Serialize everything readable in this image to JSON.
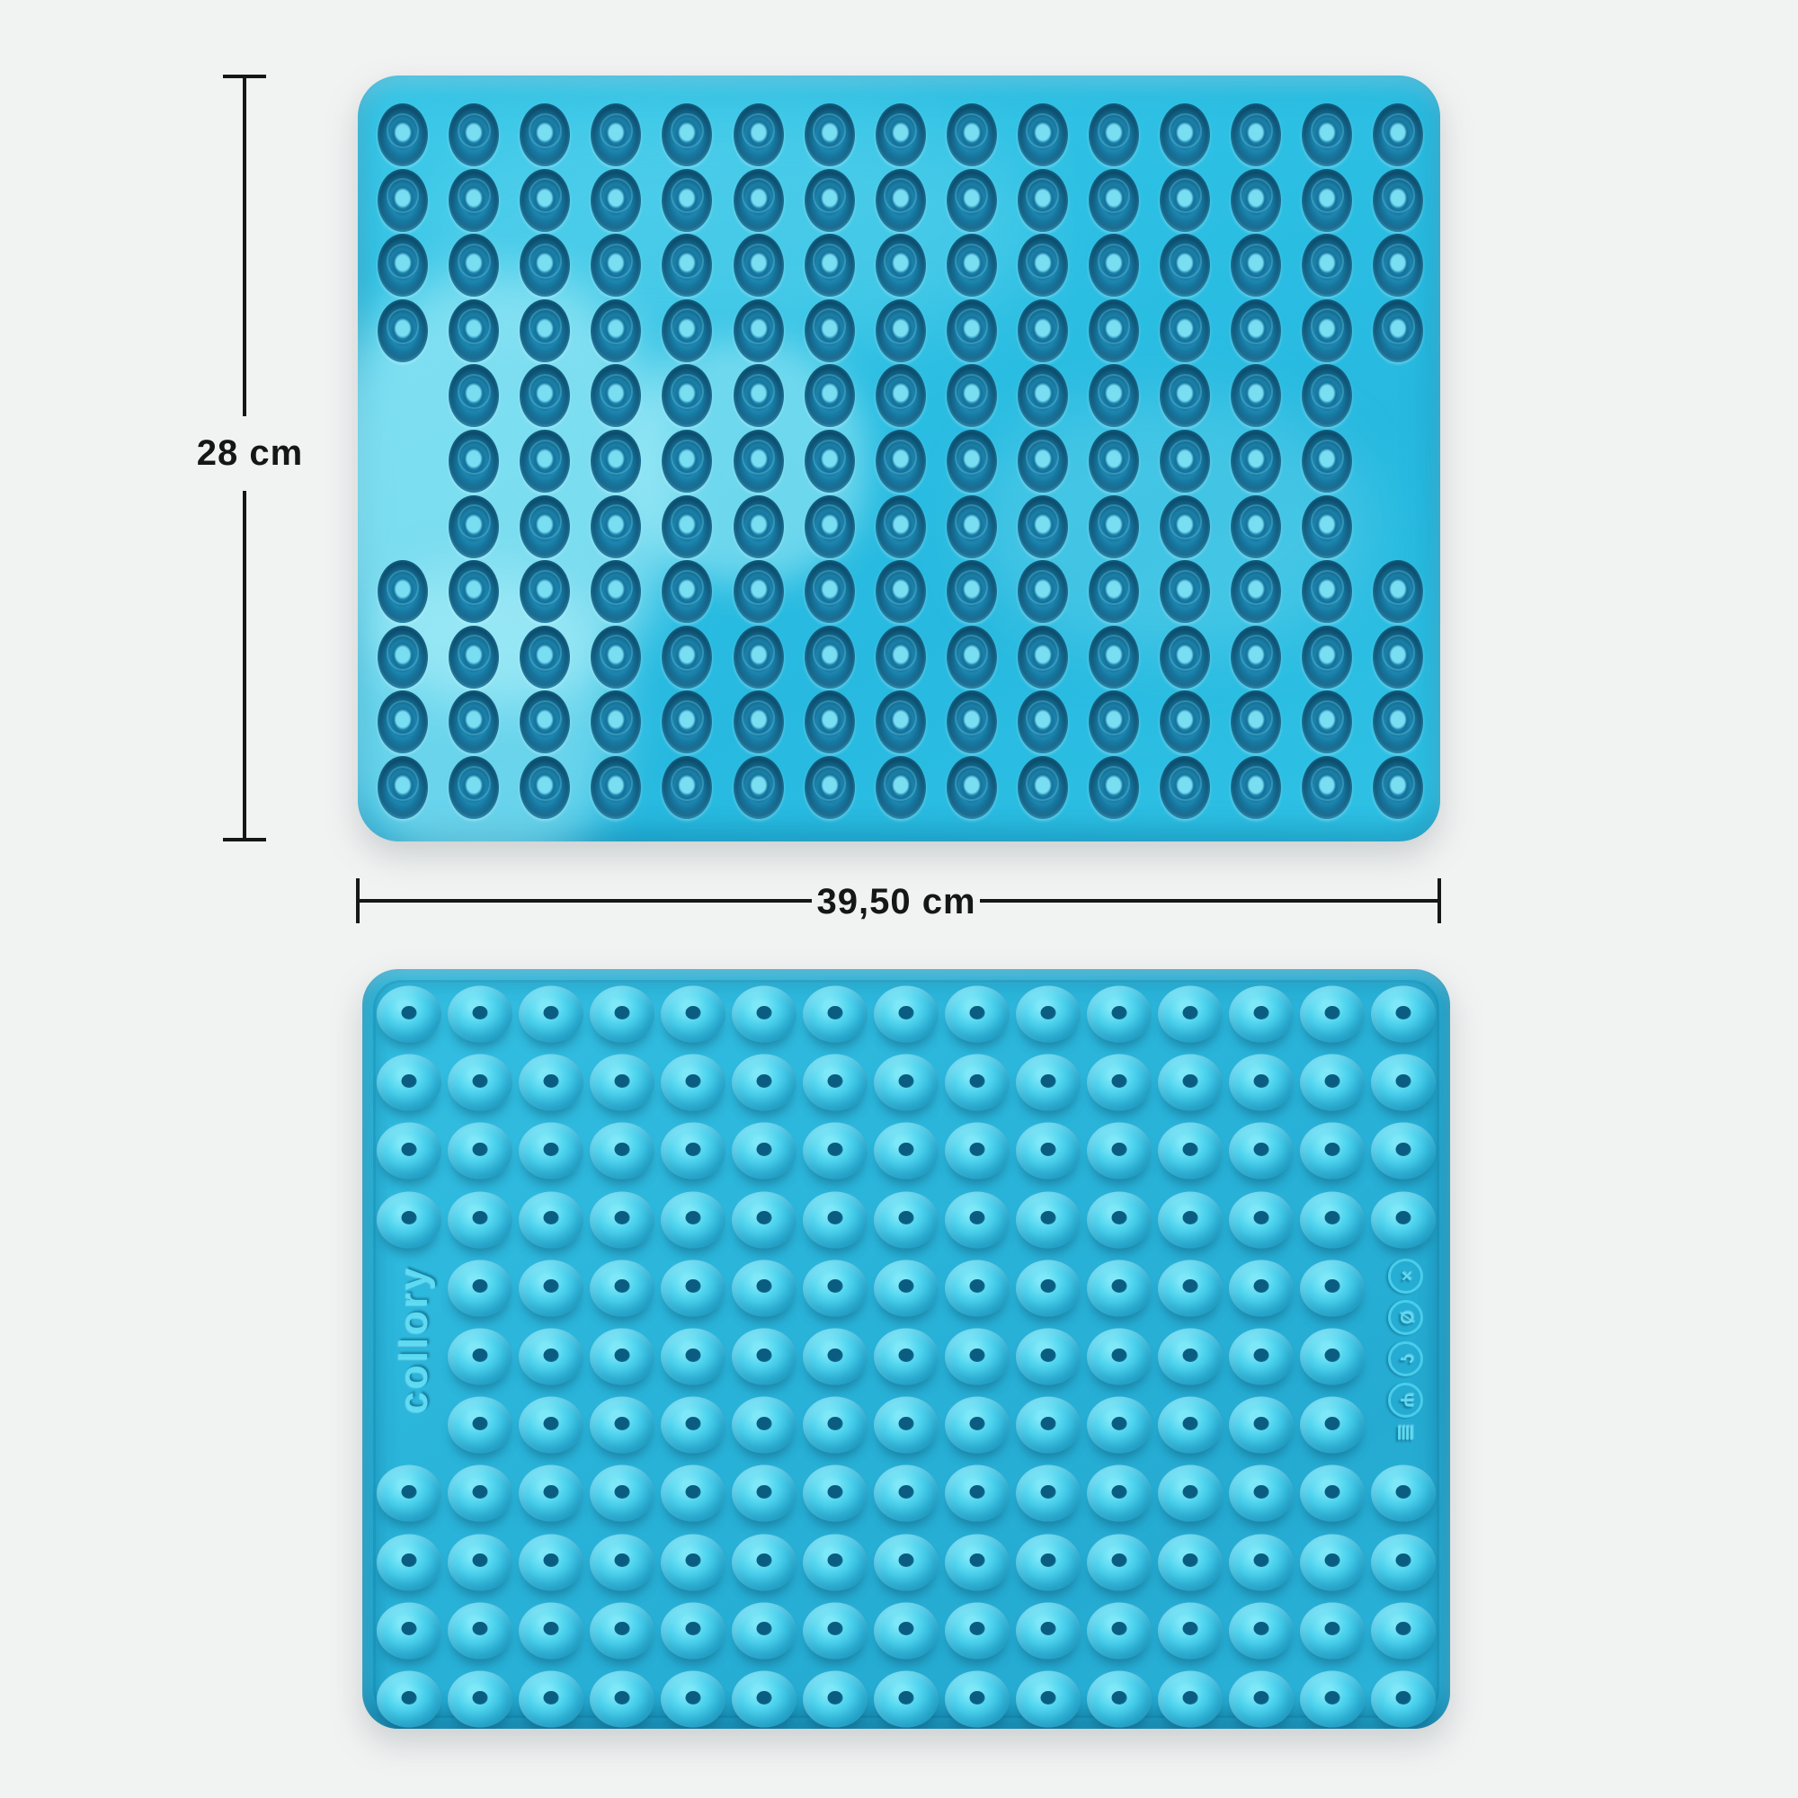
{
  "scene": {
    "background_color": "#f1f2f2",
    "product": "silicone donut baking mat, shown from top side and underside"
  },
  "dimension_annotations": {
    "line_color": "#161616",
    "height": {
      "label": "28 cm"
    },
    "width": {
      "label": "39,50 cm"
    }
  },
  "top_mat": {
    "side": "top-with-cavities",
    "base_color": "#2dc0e4",
    "cavity_color": "#15719a",
    "grid": {
      "columns": 15,
      "rows": 11,
      "skipped_cells": [
        {
          "row": 5,
          "col": 1
        },
        {
          "row": 6,
          "col": 1
        },
        {
          "row": 7,
          "col": 1
        },
        {
          "row": 5,
          "col": 15
        },
        {
          "row": 6,
          "col": 15
        },
        {
          "row": 7,
          "col": 15
        }
      ],
      "cavity_count": 159
    }
  },
  "bottom_mat": {
    "side": "underside-with-bumps",
    "base_color": "#2ab4da",
    "bump_color": "#4fd4ef",
    "brand_text": "collory",
    "grid": {
      "columns": 15,
      "rows": 11,
      "skipped_cells": [
        {
          "row": 5,
          "col": 1
        },
        {
          "row": 6,
          "col": 1
        },
        {
          "row": 7,
          "col": 1
        },
        {
          "row": 5,
          "col": 15
        },
        {
          "row": 6,
          "col": 15
        },
        {
          "row": 7,
          "col": 15
        }
      ],
      "bump_count": 159
    },
    "cert_icons": [
      {
        "name": "no-microwave-icon",
        "glyph": "×"
      },
      {
        "name": "no-open-flame-icon",
        "glyph": "Ø"
      },
      {
        "name": "squirrel-brand-icon",
        "glyph": "ʕ"
      },
      {
        "name": "food-safe-glass-fork-icon",
        "glyph": "Ψ"
      }
    ],
    "temperature_mark_glyph": "≣"
  }
}
